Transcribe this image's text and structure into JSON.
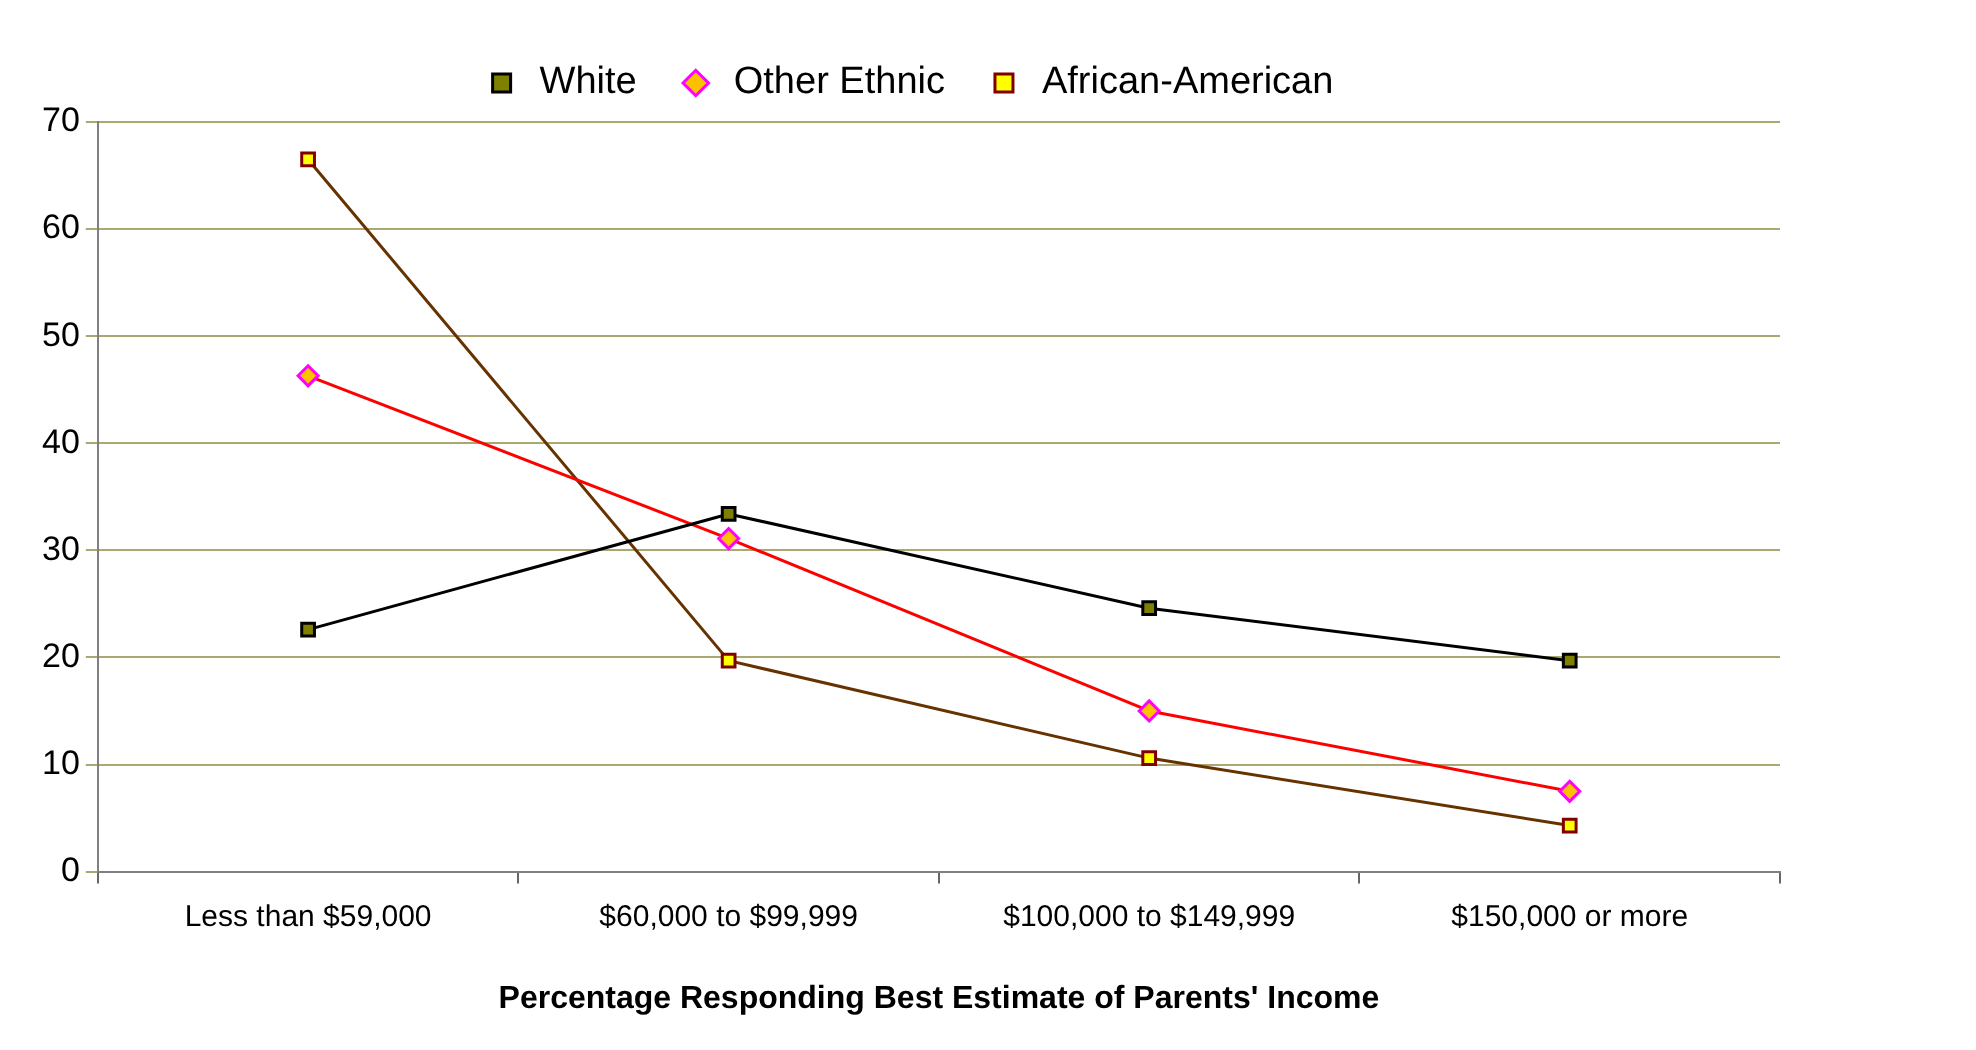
{
  "chart_data": {
    "type": "line",
    "xlabel": "Percentage Responding Best Estimate of Parents' Income",
    "categories": [
      "Less than $59,000",
      "$60,000 to $99,999",
      "$100,000 to $149,999",
      "$150,000 or more"
    ],
    "series": [
      {
        "name": "White",
        "color": "#000000",
        "marker": "square",
        "values": [
          22.6,
          33.4,
          24.6,
          19.7
        ]
      },
      {
        "name": "Other Ethnic",
        "color": "#ff0000",
        "marker": "diamond",
        "values": [
          46.3,
          31.1,
          15.0,
          7.5
        ]
      },
      {
        "name": "African-American",
        "color": "#663300",
        "marker": "square",
        "values": [
          66.5,
          19.7,
          10.6,
          4.3
        ]
      }
    ],
    "ylim": [
      0,
      70
    ],
    "yticks": [
      0,
      10,
      20,
      30,
      40,
      50,
      60,
      70
    ],
    "grid": "y",
    "legend": "top",
    "line_style": "solid"
  }
}
